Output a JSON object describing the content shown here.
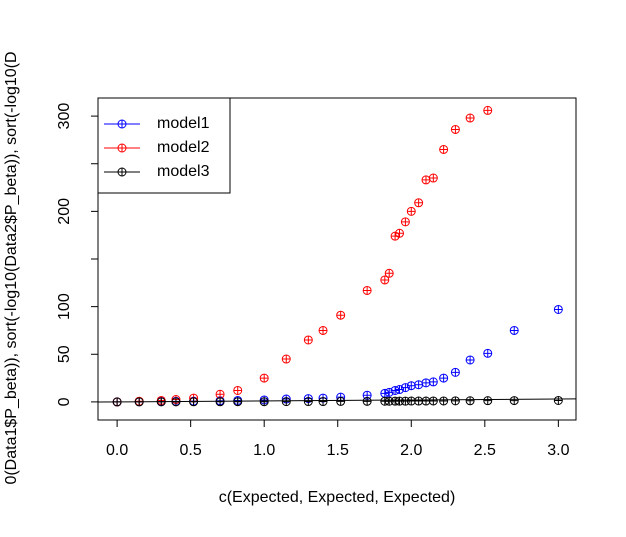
{
  "chart_data": {
    "type": "scatter",
    "xlabel": "c(Expected, Expected, Expected)",
    "ylabel": "0(Data1$P_beta)), sort(-log10(Data2$P_beta)), sort(-log10(D",
    "x": [
      3.0,
      2.7,
      2.52,
      2.4,
      2.3,
      2.22,
      2.15,
      2.1,
      2.05,
      2.0,
      1.96,
      1.92,
      1.89,
      1.85,
      1.82,
      1.7,
      1.52,
      1.4,
      1.3,
      1.15,
      1.0,
      0.82,
      0.7,
      0.52,
      0.4,
      0.3,
      0.15,
      0
    ],
    "series": [
      {
        "name": "model1",
        "color": "#0000ff",
        "values": [
          97,
          75,
          51,
          44,
          31,
          25,
          21,
          20,
          18,
          17,
          15,
          13,
          12,
          10,
          9,
          7,
          5,
          4,
          3.5,
          3,
          2,
          1.5,
          1.2,
          0.8,
          0.6,
          0.4,
          0.2,
          0
        ]
      },
      {
        "name": "model2",
        "color": "#ff0000",
        "values": [
          null,
          null,
          306,
          298,
          286,
          265,
          235,
          233,
          209,
          200,
          189,
          177,
          174,
          135,
          128,
          117,
          91,
          75,
          65,
          45,
          25,
          12,
          8,
          4,
          2.5,
          1.5,
          0.7,
          0
        ]
      },
      {
        "name": "model3",
        "color": "#000000",
        "values": [
          1.5,
          1.4,
          1.3,
          1.2,
          1.1,
          1.0,
          1.0,
          0.9,
          0.9,
          0.9,
          0.8,
          0.8,
          0.8,
          0.7,
          0.7,
          0.6,
          0.5,
          0.4,
          0.4,
          0.3,
          0.2,
          0.2,
          0.1,
          0.1,
          0.05,
          0.03,
          0.01,
          0
        ]
      }
    ],
    "abline": [
      0,
      1
    ],
    "xlim": [
      -0.13,
      3.12
    ],
    "ylim": [
      -19,
      319
    ],
    "xticks": [
      {
        "value": 0,
        "label": "0.0"
      },
      {
        "value": 0.5,
        "label": "0.5"
      },
      {
        "value": 1,
        "label": "1.0"
      },
      {
        "value": 1.5,
        "label": "1.5"
      },
      {
        "value": 2,
        "label": "2.0"
      },
      {
        "value": 2.5,
        "label": "2.5"
      },
      {
        "value": 3,
        "label": "3.0"
      }
    ],
    "yticks": [
      0,
      50,
      100,
      {
        "value": 150,
        "label": null
      },
      200,
      {
        "value": 250,
        "label": null
      },
      300
    ],
    "legend": "top-left"
  }
}
